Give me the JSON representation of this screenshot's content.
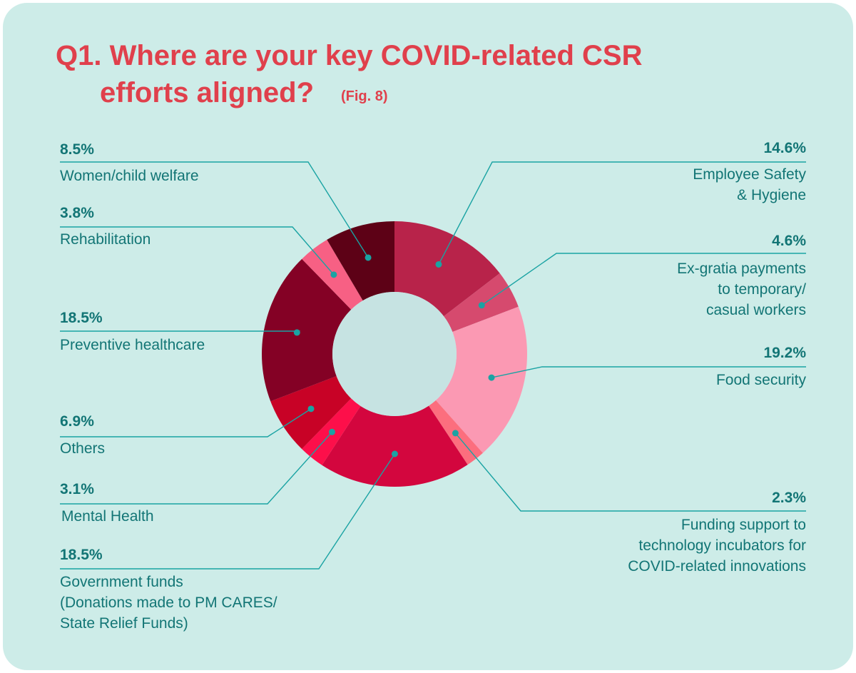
{
  "chart_data": {
    "type": "pie",
    "title_line1": "Q1. Where are your key COVID-related CSR",
    "title_line2": "efforts aligned?",
    "figure_tag": "(Fig. 8)",
    "slices": [
      {
        "label": "Employee Safety\n& Hygiene",
        "value": 14.6,
        "value_label": "14.6%",
        "color": "#b8234a"
      },
      {
        "label": "Ex-gratia payments\nto temporary/\ncasual workers",
        "value": 4.6,
        "value_label": "4.6%",
        "color": "#d64a6e"
      },
      {
        "label": "Food security",
        "value": 19.2,
        "value_label": "19.2%",
        "color": "#fb99b3"
      },
      {
        "label": "Funding support to\ntechnology incubators for\nCOVID-related innovations",
        "value": 2.3,
        "value_label": "2.3%",
        "color": "#fc6e7e"
      },
      {
        "label": "Government funds\n(Donations made to PM CARES/\nState Relief Funds)",
        "value": 18.5,
        "value_label": "18.5%",
        "color": "#d3063e"
      },
      {
        "label": "Mental Health",
        "value": 3.1,
        "value_label": "3.1%",
        "color": "#fd0f4a"
      },
      {
        "label": "Others",
        "value": 6.9,
        "value_label": "6.9%",
        "color": "#c80226"
      },
      {
        "label": "Preventive healthcare",
        "value": 18.5,
        "value_label": "18.5%",
        "color": "#840125"
      },
      {
        "label": "Rehabilitation",
        "value": 3.8,
        "value_label": "3.8%",
        "color": "#f76084"
      },
      {
        "label": "Women/child welfare",
        "value": 8.5,
        "value_label": "8.5%",
        "color": "#5d0116"
      }
    ]
  },
  "colors": {
    "background": "#cdece8",
    "title": "#e0404c",
    "text": "#127575",
    "leader": "#1aa3a3",
    "hole": "#c6e3e2"
  }
}
